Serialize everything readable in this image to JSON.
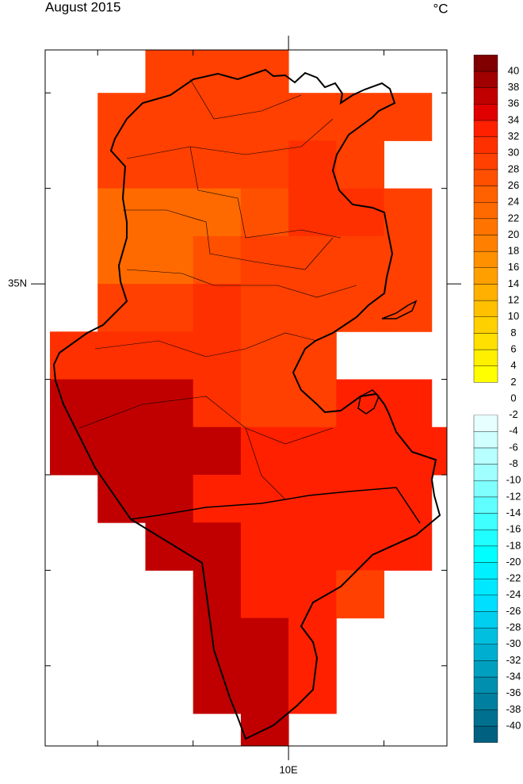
{
  "chart_data": {
    "type": "gridmap",
    "title": "August 2015",
    "units": "°C",
    "xlim": [
      7.45,
      11.66
    ],
    "ylim": [
      30.16,
      37.45
    ],
    "xticks": [
      {
        "value": 10,
        "label": "10E"
      }
    ],
    "xticks_unlabeled": [
      8,
      9,
      11
    ],
    "yticks": [
      {
        "value": 35,
        "label": "35N"
      }
    ],
    "yticks_unlabeled": [
      31,
      32,
      33,
      34,
      36,
      37
    ],
    "rows": [
      {
        "lat": 37,
        "lons": [
          8.5,
          9,
          9.5
        ],
        "values": [
          29,
          29,
          29
        ]
      },
      {
        "lat": 36.5,
        "lons": [
          8,
          8.5,
          9,
          9.5,
          10,
          10.5,
          11
        ],
        "values": [
          29,
          29,
          29,
          29,
          29,
          29,
          29
        ]
      },
      {
        "lat": 36,
        "lons": [
          8,
          8.5,
          9,
          9.5,
          10,
          10.5
        ],
        "values": [
          29,
          29,
          29,
          29,
          31,
          29
        ]
      },
      {
        "lat": 35.5,
        "lons": [
          8,
          8.5,
          9,
          9.5,
          10,
          10.5,
          11
        ],
        "values": [
          23,
          23,
          23,
          27,
          31,
          31,
          29
        ]
      },
      {
        "lat": 35,
        "lons": [
          8,
          8.5,
          9,
          9.5,
          10,
          10.5,
          11
        ],
        "values": [
          23,
          23,
          27,
          29,
          29,
          29,
          29
        ]
      },
      {
        "lat": 34.5,
        "lons": [
          8,
          8.5,
          9,
          9.5,
          10,
          10.5,
          11
        ],
        "values": [
          29,
          29,
          31,
          29,
          29,
          29,
          29
        ]
      },
      {
        "lat": 34,
        "lons": [
          7.5,
          8,
          8.5,
          9,
          9.5,
          10
        ],
        "values": [
          31,
          31,
          31,
          31,
          29,
          29
        ]
      },
      {
        "lat": 33.5,
        "lons": [
          7.5,
          8,
          8.5,
          9,
          9.5,
          10,
          10.5,
          11
        ],
        "values": [
          37,
          37,
          37,
          31,
          29,
          29,
          33,
          33
        ]
      },
      {
        "lat": 33,
        "lons": [
          7.5,
          8,
          8.5,
          9,
          9.5,
          10,
          10.5,
          11,
          11.5
        ],
        "values": [
          37,
          37,
          37,
          37,
          33,
          33,
          33,
          33,
          33
        ]
      },
      {
        "lat": 32.5,
        "lons": [
          8,
          8.5,
          9,
          9.5,
          10,
          10.5,
          11
        ],
        "values": [
          37,
          37,
          33,
          33,
          33,
          33,
          33
        ]
      },
      {
        "lat": 32,
        "lons": [
          8.5,
          9,
          9.5,
          10,
          10.5,
          11
        ],
        "values": [
          37,
          37,
          33,
          33,
          33,
          33
        ]
      },
      {
        "lat": 31.5,
        "lons": [
          9,
          9.5,
          10,
          10.5
        ],
        "values": [
          37,
          33,
          33,
          29
        ]
      },
      {
        "lat": 31,
        "lons": [
          9,
          9.5,
          10
        ],
        "values": [
          37,
          37,
          33
        ]
      },
      {
        "lat": 30.5,
        "lons": [
          9,
          9.5,
          10
        ],
        "values": [
          37,
          37,
          33
        ]
      },
      {
        "lat": 30,
        "lons": [
          9.5
        ],
        "values": [
          37
        ]
      }
    ],
    "colorbar": {
      "levels": [
        -40,
        -38,
        -36,
        -34,
        -32,
        -30,
        -28,
        -26,
        -24,
        -22,
        -20,
        -18,
        -16,
        -14,
        -12,
        -10,
        -8,
        -6,
        -4,
        -2,
        0,
        2,
        4,
        6,
        8,
        10,
        12,
        14,
        16,
        18,
        20,
        22,
        24,
        26,
        28,
        30,
        32,
        34,
        36,
        38,
        40
      ],
      "colors": [
        "#00607f",
        "#00708f",
        "#007f9f",
        "#008fae",
        "#009fbf",
        "#00afcf",
        "#00bfdf",
        "#00cfef",
        "#00dfff",
        "#00e8ff",
        "#00f0ff",
        "#00ffff",
        "#20ffff",
        "#40ffff",
        "#60ffff",
        "#80ffff",
        "#a0ffff",
        "#b8ffff",
        "#d0ffff",
        "#e8ffff",
        "#ffffff",
        "#ffffff",
        "#ffff00",
        "#fff000",
        "#ffe000",
        "#ffd000",
        "#ffc000",
        "#ffb000",
        "#ffa000",
        "#ff9000",
        "#ff8000",
        "#ff7400",
        "#ff6a00",
        "#ff6000",
        "#ff5000",
        "#ff4000",
        "#ff3000",
        "#ff2000",
        "#e00000",
        "#c00000",
        "#a00000",
        "#800000"
      ]
    }
  }
}
